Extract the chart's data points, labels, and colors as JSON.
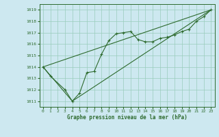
{
  "title": "Graphe pression niveau de la mer (hPa)",
  "bg_color": "#cde8f0",
  "grid_color": "#99ccbb",
  "line_color": "#2d6a2d",
  "xlim": [
    -0.5,
    23.5
  ],
  "ylim": [
    1010.5,
    1019.5
  ],
  "xticks": [
    0,
    1,
    2,
    3,
    4,
    5,
    6,
    7,
    8,
    9,
    10,
    11,
    12,
    13,
    14,
    15,
    16,
    17,
    18,
    19,
    20,
    21,
    22,
    23
  ],
  "yticks": [
    1011,
    1012,
    1013,
    1014,
    1015,
    1016,
    1017,
    1018,
    1019
  ],
  "series1_x": [
    0,
    1,
    3,
    4,
    5,
    6,
    7,
    8,
    9,
    10,
    11,
    12,
    13,
    14,
    15,
    16,
    17,
    18,
    19,
    20,
    21,
    22,
    23
  ],
  "series1_y": [
    1014.0,
    1013.2,
    1012.0,
    1011.0,
    1011.7,
    1013.5,
    1013.6,
    1015.1,
    1016.3,
    1016.9,
    1017.0,
    1017.1,
    1016.4,
    1016.2,
    1016.2,
    1016.5,
    1016.6,
    1016.8,
    1017.1,
    1017.3,
    1018.0,
    1018.4,
    1019.0
  ],
  "series2_x": [
    0,
    4,
    23
  ],
  "series2_y": [
    1014.0,
    1011.0,
    1019.0
  ],
  "series3_x": [
    0,
    23
  ],
  "series3_y": [
    1014.0,
    1019.0
  ],
  "xlabel_fontsize": 5.5,
  "ylabel_fontsize": 5.0,
  "tick_fontsize": 4.5,
  "title_fontsize": 5.5
}
